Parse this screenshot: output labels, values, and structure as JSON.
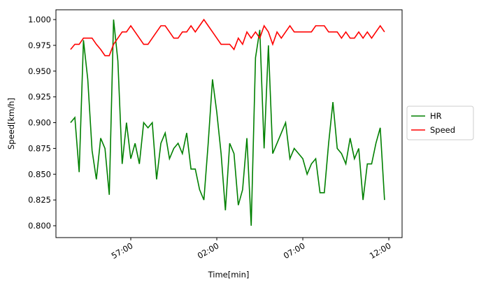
{
  "chart_data": {
    "type": "line",
    "x_label": "Time[min]",
    "y_label": "Speed[km/h]",
    "x": [
      53.5,
      53.75,
      54,
      54.25,
      54.5,
      54.75,
      55,
      55.25,
      55.5,
      55.75,
      56,
      56.25,
      56.5,
      56.75,
      57,
      57.25,
      57.5,
      57.75,
      58,
      58.25,
      58.5,
      58.75,
      59,
      59.25,
      59.5,
      59.75,
      60,
      60.25,
      60.5,
      60.75,
      61,
      61.25,
      61.5,
      61.75,
      62,
      62.25,
      62.5,
      62.75,
      63,
      63.25,
      63.5,
      63.75,
      64,
      64.25,
      64.5,
      64.75,
      65,
      65.25,
      65.5,
      65.75,
      66,
      66.25,
      66.5,
      66.75,
      67,
      67.25,
      67.5,
      67.75,
      68,
      68.25,
      68.5,
      68.75,
      69,
      69.25,
      69.5,
      69.75,
      70,
      70.25,
      70.5,
      70.75,
      71,
      71.25,
      71.5,
      71.75
    ],
    "series": [
      {
        "name": "HR",
        "color": "#008000",
        "values": [
          0.9,
          0.905,
          0.852,
          0.98,
          0.942,
          0.873,
          0.845,
          0.885,
          0.875,
          0.83,
          1.0,
          0.96,
          0.86,
          0.9,
          0.865,
          0.88,
          0.86,
          0.9,
          0.895,
          0.9,
          0.845,
          0.88,
          0.89,
          0.865,
          0.875,
          0.88,
          0.87,
          0.89,
          0.855,
          0.855,
          0.835,
          0.825,
          0.88,
          0.942,
          0.91,
          0.87,
          0.815,
          0.88,
          0.87,
          0.82,
          0.835,
          0.885,
          0.8,
          0.963,
          0.99,
          0.875,
          0.975,
          0.87,
          0.88,
          0.89,
          0.9,
          0.865,
          0.875,
          0.87,
          0.865,
          0.85,
          0.86,
          0.865,
          0.832,
          0.832,
          0.88,
          0.92,
          0.875,
          0.87,
          0.86,
          0.885,
          0.865,
          0.875,
          0.825,
          0.86,
          0.86,
          0.88,
          0.895,
          0.825
        ]
      },
      {
        "name": "Speed",
        "color": "#ff0000",
        "values": [
          0.971,
          0.976,
          0.976,
          0.982,
          0.982,
          0.982,
          0.976,
          0.971,
          0.965,
          0.965,
          0.976,
          0.982,
          0.988,
          0.988,
          0.994,
          0.988,
          0.982,
          0.976,
          0.976,
          0.982,
          0.988,
          0.994,
          0.994,
          0.988,
          0.982,
          0.982,
          0.988,
          0.988,
          0.994,
          0.988,
          0.994,
          1.0,
          0.994,
          0.988,
          0.982,
          0.976,
          0.976,
          0.976,
          0.971,
          0.982,
          0.976,
          0.988,
          0.982,
          0.988,
          0.982,
          0.994,
          0.988,
          0.976,
          0.988,
          0.982,
          0.988,
          0.994,
          0.988,
          0.988,
          0.988,
          0.988,
          0.988,
          0.994,
          0.994,
          0.994,
          0.988,
          0.988,
          0.988,
          0.982,
          0.988,
          0.982,
          0.982,
          0.988,
          0.982,
          0.988,
          0.982,
          0.988,
          0.994,
          0.988
        ]
      }
    ],
    "xlim": [
      52.65,
      72.77
    ],
    "xticks": [
      {
        "value": 57,
        "label": "57:00"
      },
      {
        "value": 62,
        "label": "02:00"
      },
      {
        "value": 67,
        "label": "07:00"
      },
      {
        "value": 72,
        "label": "12:00"
      }
    ],
    "ylim": [
      0.7885,
      1.0095
    ],
    "yticks": [
      {
        "value": 0.8,
        "label": "0.800"
      },
      {
        "value": 0.825,
        "label": "0.825"
      },
      {
        "value": 0.85,
        "label": "0.850"
      },
      {
        "value": 0.875,
        "label": "0.875"
      },
      {
        "value": 0.9,
        "label": "0.900"
      },
      {
        "value": 0.925,
        "label": "0.925"
      },
      {
        "value": 0.95,
        "label": "0.950"
      },
      {
        "value": 0.975,
        "label": "0.975"
      },
      {
        "value": 1.0,
        "label": "1.000"
      }
    ],
    "grid": false,
    "legend": "right"
  }
}
